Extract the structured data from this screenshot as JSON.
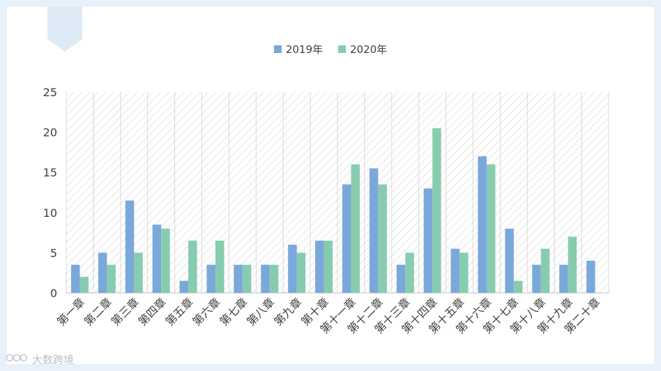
{
  "chart_data": {
    "type": "bar",
    "categories": [
      "第一章",
      "第二章",
      "第三章",
      "第四章",
      "第五章",
      "第六章",
      "第七章",
      "第八章",
      "第九章",
      "第十章",
      "第十一章",
      "第十二章",
      "第十三章",
      "第十四章",
      "第十五章",
      "第十六章",
      "第十七章",
      "第十八章",
      "第十九章",
      "第二十章"
    ],
    "series": [
      {
        "name": "2019年",
        "color": "#7aa8da",
        "values": [
          3.5,
          5,
          11.5,
          8.5,
          1.5,
          3.5,
          3.5,
          3.5,
          6,
          6.5,
          13.5,
          15.5,
          3.5,
          13,
          5.5,
          17,
          8,
          3.5,
          3.5,
          4
        ]
      },
      {
        "name": "2020年",
        "color": "#88ccb0",
        "values": [
          2,
          3.5,
          5,
          8,
          6.5,
          6.5,
          3.5,
          3.5,
          5,
          6.5,
          16,
          13.5,
          5,
          20.5,
          5,
          16,
          1.5,
          5.5,
          7,
          0
        ]
      }
    ],
    "ylim": [
      0,
      25
    ],
    "yticks": [
      0,
      5,
      10,
      15,
      20,
      25
    ],
    "grid": true,
    "legend_position": "top"
  },
  "watermark": "大数跨境"
}
